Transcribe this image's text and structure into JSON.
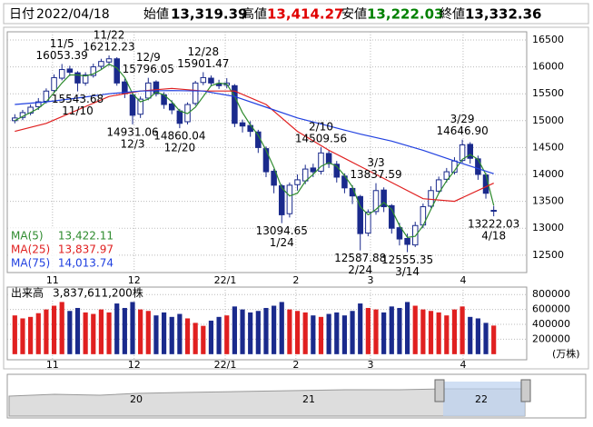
{
  "header": {
    "date_label": "日付",
    "date": "2022/04/18",
    "open_label": "始値",
    "open": "13,319.39",
    "high_label": "高値",
    "high": "13,414.27",
    "low_label": "安値",
    "low": "13,222.03",
    "close_label": "終値",
    "close": "13,332.36"
  },
  "chart_data": [
    {
      "type": "candlestick",
      "grid": true,
      "legend": "bottom-left",
      "up_color": "#ffffff",
      "down_color": "#1a2a8c",
      "ylim": [
        12176,
        16652
      ],
      "yticks": [
        12500,
        13000,
        13500,
        14000,
        14500,
        15000,
        15500,
        16000,
        16500
      ],
      "xlim": [
        -0.5,
        61.5
      ],
      "xticks": [
        {
          "value": 4.8,
          "label": "11"
        },
        {
          "value": 15.2,
          "label": "12"
        },
        {
          "value": 26.8,
          "label": "22/1"
        },
        {
          "value": 35.8,
          "label": "2"
        },
        {
          "value": 45.3,
          "label": "3"
        },
        {
          "value": 57.1,
          "label": "4"
        }
      ],
      "open": [
        15000,
        15060,
        15140,
        15260,
        15360,
        15560,
        15790,
        15960,
        15890,
        15700,
        15840,
        16010,
        16090,
        16150,
        15720,
        15480,
        15120,
        15420,
        15720,
        15480,
        15310,
        15180,
        14980,
        15320,
        15710,
        15790,
        15690,
        15660,
        15650,
        14960,
        14910,
        14790,
        14480,
        14060,
        13790,
        13270,
        13810,
        13880,
        14120,
        14060,
        14390,
        14190,
        13970,
        13740,
        13590,
        12910,
        13310,
        13710,
        13420,
        13010,
        12810,
        12690,
        13060,
        13410,
        13690,
        13910,
        14040,
        14260,
        14560,
        14290,
        13990,
        13319.39
      ],
      "high": [
        15120,
        15200,
        15300,
        15420,
        15600,
        15860,
        16053.39,
        16020,
        15920,
        15900,
        16060,
        16150,
        16212.23,
        16180,
        15780,
        15520,
        15450,
        15796.05,
        15750,
        15530,
        15380,
        15220,
        15340,
        15740,
        15901.47,
        15840,
        15760,
        15790,
        15680,
        15020,
        14990,
        14830,
        14520,
        14100,
        13820,
        13850,
        14000,
        14180,
        14200,
        14509.56,
        14450,
        14250,
        14020,
        13800,
        13620,
        13350,
        13837.59,
        13760,
        13450,
        13100,
        12900,
        13120,
        13460,
        13780,
        13960,
        14120,
        14320,
        14646.9,
        14600,
        14350,
        14030,
        13414.27
      ],
      "low": [
        14950,
        15010,
        15100,
        15200,
        15320,
        15520,
        15750,
        15830,
        15543.68,
        15650,
        15800,
        15960,
        16020,
        15650,
        15420,
        14931.06,
        15050,
        15380,
        15450,
        15220,
        15120,
        14860.04,
        14930,
        15280,
        15660,
        15640,
        15590,
        15600,
        14880,
        14780,
        14700,
        14400,
        13950,
        13650,
        13094.65,
        13200,
        13700,
        13820,
        13950,
        14000,
        14120,
        13850,
        13650,
        13450,
        12587.88,
        12850,
        13250,
        13300,
        12900,
        12680,
        12555.35,
        12650,
        13000,
        13380,
        13650,
        13850,
        14000,
        14220,
        14200,
        13900,
        13550,
        13222.03
      ],
      "close": [
        15050,
        15150,
        15250,
        15350,
        15550,
        15800,
        15950,
        15900,
        15700,
        15850,
        16000,
        16100,
        16150,
        15700,
        15500,
        15100,
        15400,
        15700,
        15500,
        15300,
        15200,
        14950,
        15300,
        15700,
        15800,
        15700,
        15650,
        15700,
        14950,
        14900,
        14800,
        14500,
        14050,
        13800,
        13250,
        13800,
        13900,
        14100,
        14050,
        14400,
        14200,
        13950,
        13750,
        13600,
        12900,
        13300,
        13700,
        13400,
        13000,
        12800,
        12700,
        13050,
        13400,
        13700,
        13900,
        14050,
        14250,
        14550,
        14300,
        14000,
        13650,
        13332.36
      ],
      "annotations": [
        {
          "date": "11/5",
          "value": 16053.39
        },
        {
          "date": "11/10",
          "value": 15543.68
        },
        {
          "date": "11/22",
          "value": 16212.23
        },
        {
          "date": "12/3",
          "value": 14931.06
        },
        {
          "date": "12/9",
          "value": 15796.05
        },
        {
          "date": "12/20",
          "value": 14860.04
        },
        {
          "date": "12/28",
          "value": 15901.47
        },
        {
          "date": "1/24",
          "value": 13094.65
        },
        {
          "date": "2/10",
          "value": 14509.56
        },
        {
          "date": "2/24",
          "value": 12587.88
        },
        {
          "date": "3/3",
          "value": 13837.59
        },
        {
          "date": "3/14",
          "value": 12555.35
        },
        {
          "date": "3/29",
          "value": 14646.9,
          "label": "14646.90"
        },
        {
          "date": "4/18",
          "value": 13222.03
        }
      ],
      "series": [
        {
          "name": "MA(5)",
          "color": "#2e8b2e",
          "value_label": "13,422.11",
          "x": [
            0,
            1,
            2,
            3,
            4,
            5,
            6,
            7,
            8,
            9,
            10,
            11,
            12,
            13,
            14,
            15,
            16,
            17,
            18,
            19,
            20,
            21,
            22,
            23,
            24,
            25,
            26,
            27,
            28,
            29,
            30,
            31,
            32,
            33,
            34,
            35,
            36,
            37,
            38,
            39,
            40,
            41,
            42,
            43,
            44,
            45,
            46,
            47,
            48,
            49,
            50,
            51,
            52,
            53,
            54,
            55,
            56,
            57,
            58,
            59,
            60,
            61
          ],
          "values": [
            15000,
            15080,
            15150,
            15230,
            15350,
            15520,
            15700,
            15850,
            15850,
            15830,
            15870,
            15950,
            16050,
            15980,
            15800,
            15500,
            15350,
            15400,
            15530,
            15480,
            15350,
            15180,
            15130,
            15250,
            15450,
            15650,
            15700,
            15680,
            15450,
            15150,
            14920,
            14730,
            14450,
            14130,
            13750,
            13600,
            13650,
            13870,
            14000,
            14150,
            14220,
            14150,
            13980,
            13770,
            13400,
            13250,
            13350,
            13480,
            13350,
            13050,
            12830,
            12850,
            13050,
            13350,
            13650,
            13880,
            14070,
            14280,
            14370,
            14280,
            14000,
            13422.11
          ]
        },
        {
          "name": "MA(25)",
          "color": "#e02020",
          "value_label": "13,837.97",
          "x": [
            0,
            4,
            8,
            12,
            16,
            20,
            24,
            28,
            32,
            36,
            40,
            44,
            48,
            52,
            56,
            61
          ],
          "values": [
            14800,
            14950,
            15200,
            15450,
            15550,
            15600,
            15550,
            15550,
            15300,
            14800,
            14450,
            14150,
            13850,
            13550,
            13500,
            13837.97
          ]
        },
        {
          "name": "MA(75)",
          "color": "#2040e0",
          "value_label": "14,013.74",
          "x": [
            0,
            4,
            8,
            12,
            16,
            20,
            24,
            28,
            32,
            36,
            40,
            44,
            48,
            52,
            56,
            61
          ],
          "values": [
            15300,
            15350,
            15420,
            15500,
            15550,
            15560,
            15550,
            15450,
            15250,
            15050,
            14900,
            14750,
            14620,
            14450,
            14250,
            14013.74
          ]
        }
      ]
    },
    {
      "type": "bar",
      "title": "出来高",
      "value_label": "3,837,611,200株",
      "unit": "(万株)",
      "up_color": "#e02020",
      "down_color": "#1a2a8c",
      "grid": true,
      "ylim": [
        -75000,
        900000
      ],
      "yticks": [
        200000,
        400000,
        600000,
        800000
      ],
      "values": [
        520000,
        480000,
        500000,
        550000,
        600000,
        650000,
        700000,
        580000,
        620000,
        560000,
        540000,
        600000,
        560000,
        680000,
        620000,
        700000,
        600000,
        580000,
        520000,
        560000,
        500000,
        540000,
        480000,
        420000,
        380000,
        450000,
        500000,
        520000,
        640000,
        600000,
        560000,
        580000,
        620000,
        650000,
        700000,
        600000,
        580000,
        560000,
        520000,
        500000,
        540000,
        560000,
        520000,
        580000,
        680000,
        620000,
        600000,
        560000,
        640000,
        620000,
        700000,
        650000,
        600000,
        580000,
        560000,
        520000,
        600000,
        640000,
        500000,
        480000,
        420000,
        383761.12
      ]
    }
  ],
  "navigator": {
    "labels": [
      "20",
      "21",
      "22"
    ]
  }
}
